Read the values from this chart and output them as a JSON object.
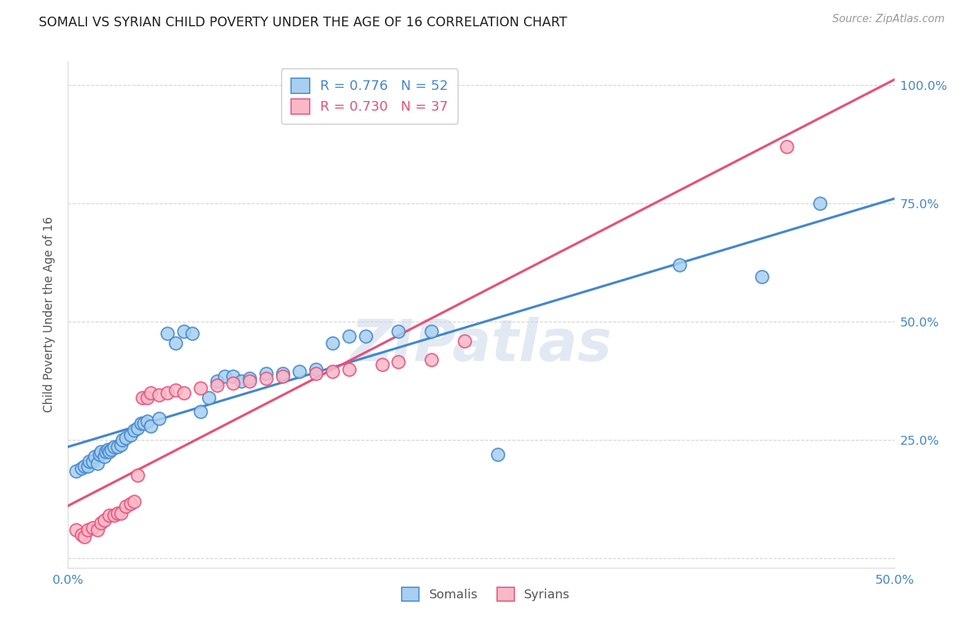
{
  "title": "SOMALI VS SYRIAN CHILD POVERTY UNDER THE AGE OF 16 CORRELATION CHART",
  "source": "Source: ZipAtlas.com",
  "ylabel": "Child Poverty Under the Age of 16",
  "xlim": [
    0.0,
    0.5
  ],
  "ylim": [
    -0.02,
    1.05
  ],
  "yticks": [
    0.0,
    0.25,
    0.5,
    0.75,
    1.0
  ],
  "ytick_labels": [
    "",
    "25.0%",
    "50.0%",
    "75.0%",
    "100.0%"
  ],
  "xticks": [
    0.0,
    0.1,
    0.2,
    0.3,
    0.4,
    0.5
  ],
  "xtick_labels": [
    "0.0%",
    "",
    "",
    "",
    "",
    "50.0%"
  ],
  "somali_R": 0.776,
  "somali_N": 52,
  "syrian_R": 0.73,
  "syrian_N": 37,
  "somali_color": "#a8cff0",
  "syrian_color": "#f8b8c8",
  "somali_line_color": "#4488cc",
  "syrian_line_color": "#e8507a",
  "watermark": "ZIPatlas",
  "background_color": "#ffffff",
  "grid_color": "#c8c8c8",
  "somali_x": [
    0.005,
    0.008,
    0.01,
    0.012,
    0.013,
    0.015,
    0.016,
    0.018,
    0.019,
    0.02,
    0.022,
    0.023,
    0.024,
    0.025,
    0.026,
    0.028,
    0.03,
    0.032,
    0.033,
    0.035,
    0.038,
    0.04,
    0.042,
    0.044,
    0.046,
    0.048,
    0.05,
    0.055,
    0.06,
    0.065,
    0.07,
    0.075,
    0.08,
    0.085,
    0.09,
    0.095,
    0.1,
    0.105,
    0.11,
    0.12,
    0.13,
    0.14,
    0.15,
    0.16,
    0.17,
    0.18,
    0.2,
    0.22,
    0.26,
    0.37,
    0.42,
    0.455
  ],
  "somali_y": [
    0.185,
    0.19,
    0.195,
    0.195,
    0.205,
    0.205,
    0.215,
    0.2,
    0.22,
    0.225,
    0.215,
    0.225,
    0.23,
    0.225,
    0.23,
    0.235,
    0.235,
    0.24,
    0.25,
    0.255,
    0.26,
    0.27,
    0.275,
    0.285,
    0.285,
    0.29,
    0.28,
    0.295,
    0.475,
    0.455,
    0.48,
    0.475,
    0.31,
    0.34,
    0.375,
    0.385,
    0.385,
    0.375,
    0.38,
    0.39,
    0.39,
    0.395,
    0.4,
    0.455,
    0.47,
    0.47,
    0.48,
    0.48,
    0.22,
    0.62,
    0.595,
    0.75
  ],
  "syrian_x": [
    0.005,
    0.008,
    0.01,
    0.012,
    0.015,
    0.018,
    0.02,
    0.022,
    0.025,
    0.028,
    0.03,
    0.032,
    0.035,
    0.038,
    0.04,
    0.042,
    0.045,
    0.048,
    0.05,
    0.055,
    0.06,
    0.065,
    0.07,
    0.08,
    0.09,
    0.1,
    0.11,
    0.12,
    0.13,
    0.15,
    0.16,
    0.17,
    0.19,
    0.2,
    0.22,
    0.24,
    0.435
  ],
  "syrian_y": [
    0.06,
    0.05,
    0.045,
    0.06,
    0.065,
    0.06,
    0.075,
    0.08,
    0.09,
    0.09,
    0.095,
    0.095,
    0.11,
    0.115,
    0.12,
    0.175,
    0.34,
    0.34,
    0.35,
    0.345,
    0.35,
    0.355,
    0.35,
    0.36,
    0.365,
    0.37,
    0.375,
    0.38,
    0.385,
    0.39,
    0.395,
    0.4,
    0.41,
    0.415,
    0.42,
    0.46,
    0.87
  ]
}
